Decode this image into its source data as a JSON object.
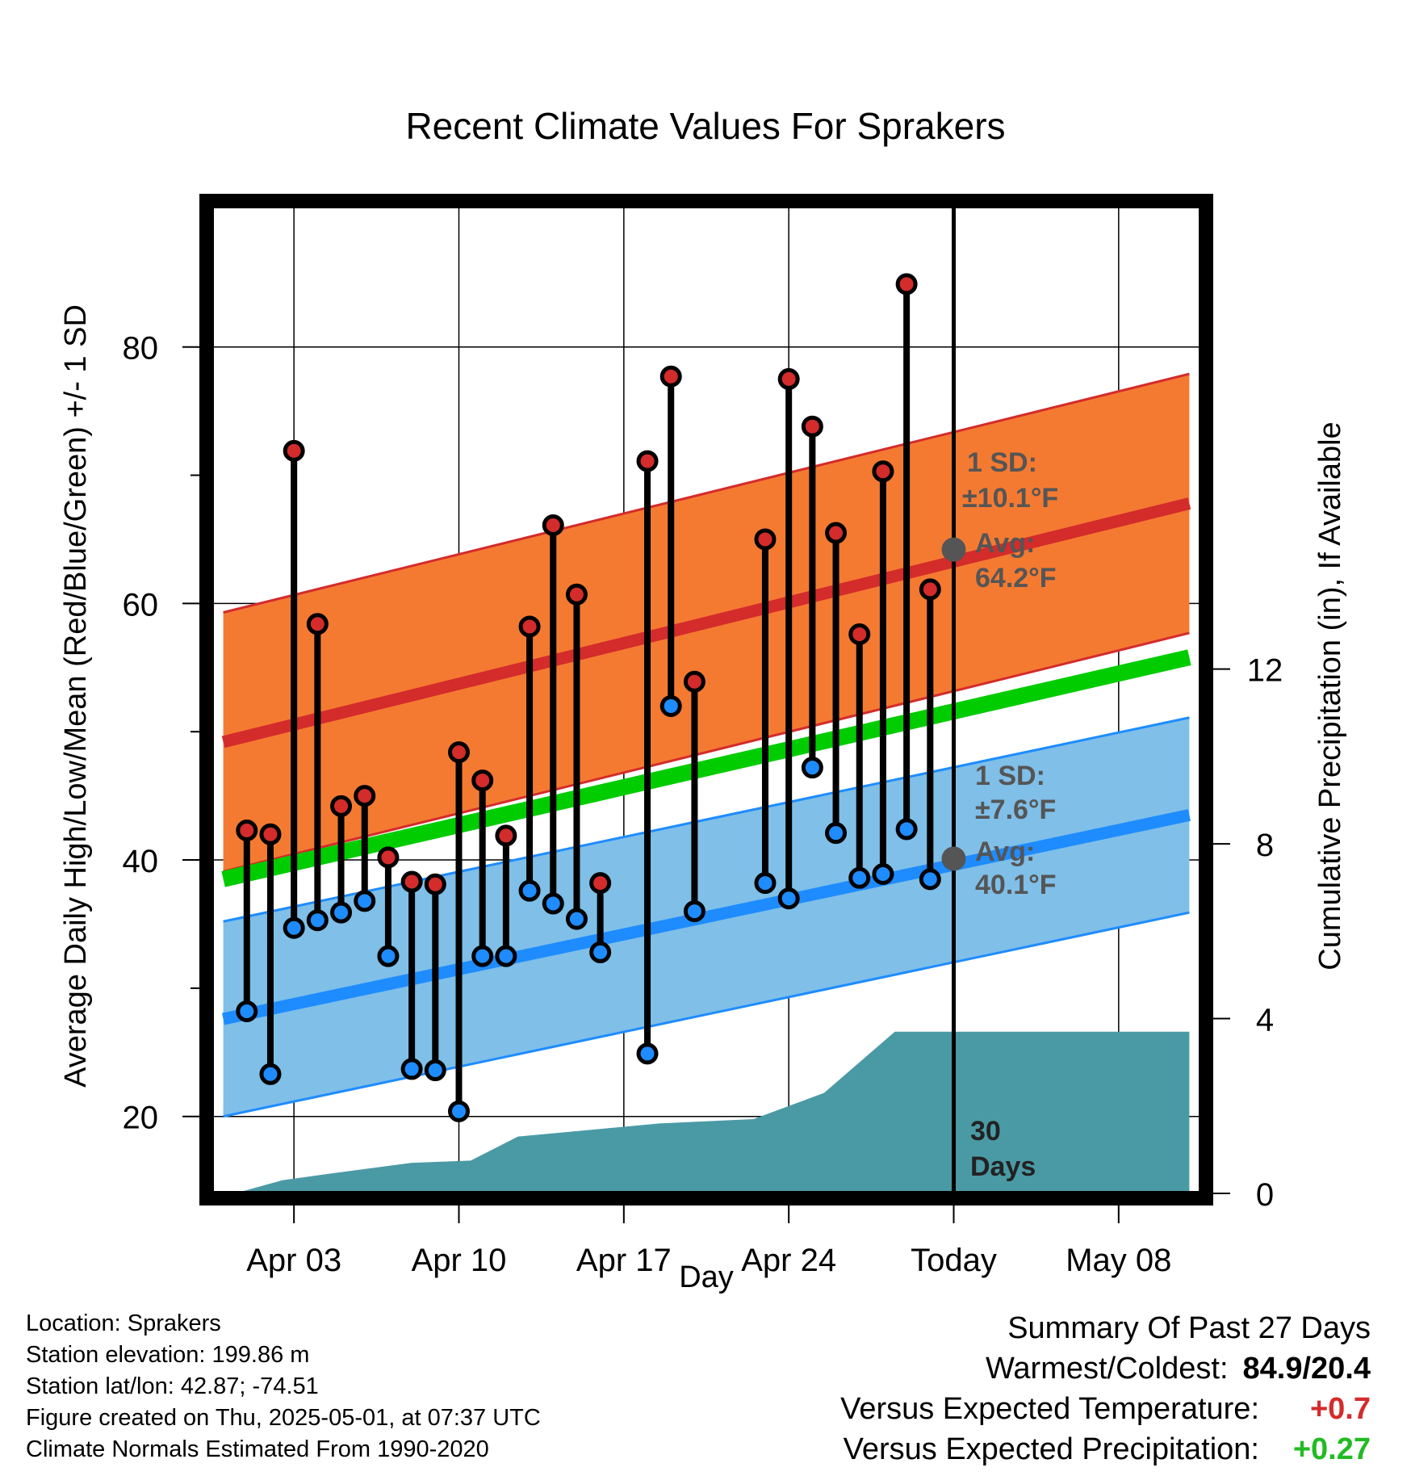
{
  "chart_data": {
    "type": "line",
    "title": "Recent Climate Values For Sprakers",
    "xlabel": "Day",
    "ylabel": "Average Daily High/Low/Mean (Red/Blue/Green) +/- 1 SD",
    "ylabel_right": "Cumulative Precipitation (in), If Available",
    "xlim": [
      -1.5,
      40.5
    ],
    "ylim": [
      14,
      91
    ],
    "ylim_right": [
      0,
      22.6
    ],
    "x_ticks": [
      {
        "day": 2,
        "label": "Apr 03"
      },
      {
        "day": 9,
        "label": "Apr 10"
      },
      {
        "day": 16,
        "label": "Apr 17"
      },
      {
        "day": 23,
        "label": "Apr 24"
      },
      {
        "day": 30,
        "label": "Today"
      },
      {
        "day": 37,
        "label": "May 08"
      }
    ],
    "y_ticks_major": [
      20,
      40,
      60,
      80
    ],
    "y_ticks_minor": [
      30,
      50,
      70
    ],
    "y_ticks_right": [
      0,
      4,
      8,
      12
    ],
    "today_day": 30,
    "normal_high": {
      "name": "Avg High",
      "x_range": [
        -1,
        40
      ],
      "start": 49.2,
      "end": 67.8,
      "sd_band": 10.1,
      "color": "#d42b2b",
      "band_color": "#f47a32"
    },
    "normal_low": {
      "name": "Avg Low",
      "x_range": [
        -1,
        40
      ],
      "start": 27.6,
      "end": 43.5,
      "sd_band": 7.6,
      "color": "#1e8cff",
      "band_color": "#7fbfe8"
    },
    "normal_mean": {
      "name": "Avg Mean",
      "x_range": [
        -1,
        40
      ],
      "start": 38.5,
      "end": 55.8,
      "color": "#00cc00"
    },
    "observed_days": [
      0,
      1,
      2,
      3,
      4,
      5,
      6,
      7,
      8,
      9,
      10,
      11,
      12,
      13,
      14,
      15,
      17,
      18,
      19,
      22,
      23,
      24,
      25,
      26,
      27,
      28,
      29
    ],
    "observed_high": [
      42.3,
      42.0,
      71.9,
      58.4,
      44.2,
      45.0,
      40.2,
      38.3,
      38.1,
      48.4,
      46.2,
      41.9,
      58.2,
      66.1,
      60.7,
      38.2,
      71.1,
      77.7,
      53.9,
      65.0,
      77.5,
      73.8,
      65.5,
      57.6,
      70.3,
      84.9,
      61.1
    ],
    "observed_low": [
      28.2,
      23.3,
      34.7,
      35.3,
      35.9,
      36.8,
      32.5,
      23.7,
      23.6,
      20.4,
      32.5,
      32.5,
      37.6,
      36.6,
      35.4,
      32.8,
      24.9,
      52.0,
      36.0,
      38.2,
      37.0,
      47.2,
      42.1,
      38.6,
      38.9,
      42.4,
      38.5
    ],
    "precip_cumulative": [
      {
        "day": -0.5,
        "value": 0.0
      },
      {
        "day": 1.5,
        "value": 0.3
      },
      {
        "day": 3.5,
        "value": 0.45
      },
      {
        "day": 7,
        "value": 0.7
      },
      {
        "day": 9.5,
        "value": 0.75
      },
      {
        "day": 11.5,
        "value": 1.3
      },
      {
        "day": 17.5,
        "value": 1.6
      },
      {
        "day": 21.5,
        "value": 1.7
      },
      {
        "day": 24.5,
        "value": 2.3
      },
      {
        "day": 27.5,
        "value": 3.7
      },
      {
        "day": 40,
        "value": 3.7
      }
    ],
    "precip_color": "#4a9aa5",
    "annotations": {
      "high_sd_line1": "1 SD:",
      "high_sd_line2": "±10.1°F",
      "high_avg_line1": "Avg:",
      "high_avg_line2": "64.2°F",
      "low_sd_line1": "1 SD:",
      "low_sd_line2": "±7.6°F",
      "low_avg_line1": "Avg:",
      "low_avg_line2": "40.1°F",
      "days_line1": "30",
      "days_line2": "Days"
    },
    "today_avg_high": 64.2,
    "today_avg_low": 40.1
  },
  "station_info": {
    "location": "Location: Sprakers",
    "elevation": "Station elevation: 199.86 m",
    "latlon": "Station lat/lon: 42.87; -74.51",
    "created": "Figure created on Thu, 2025-05-01, at 07:37 UTC",
    "normals": "Climate Normals Estimated From 1990-2020"
  },
  "summary": {
    "heading": "Summary Of Past 27 Days",
    "warmest_label": "Warmest/Coldest:",
    "warmest_value": "84.9/20.4",
    "temp_label": "Versus Expected Temperature:",
    "temp_value": "+0.7",
    "temp_color": "#d42b2b",
    "precip_label": "Versus Expected Precipitation:",
    "precip_value": "+0.27",
    "precip_color": "#22bb22"
  }
}
